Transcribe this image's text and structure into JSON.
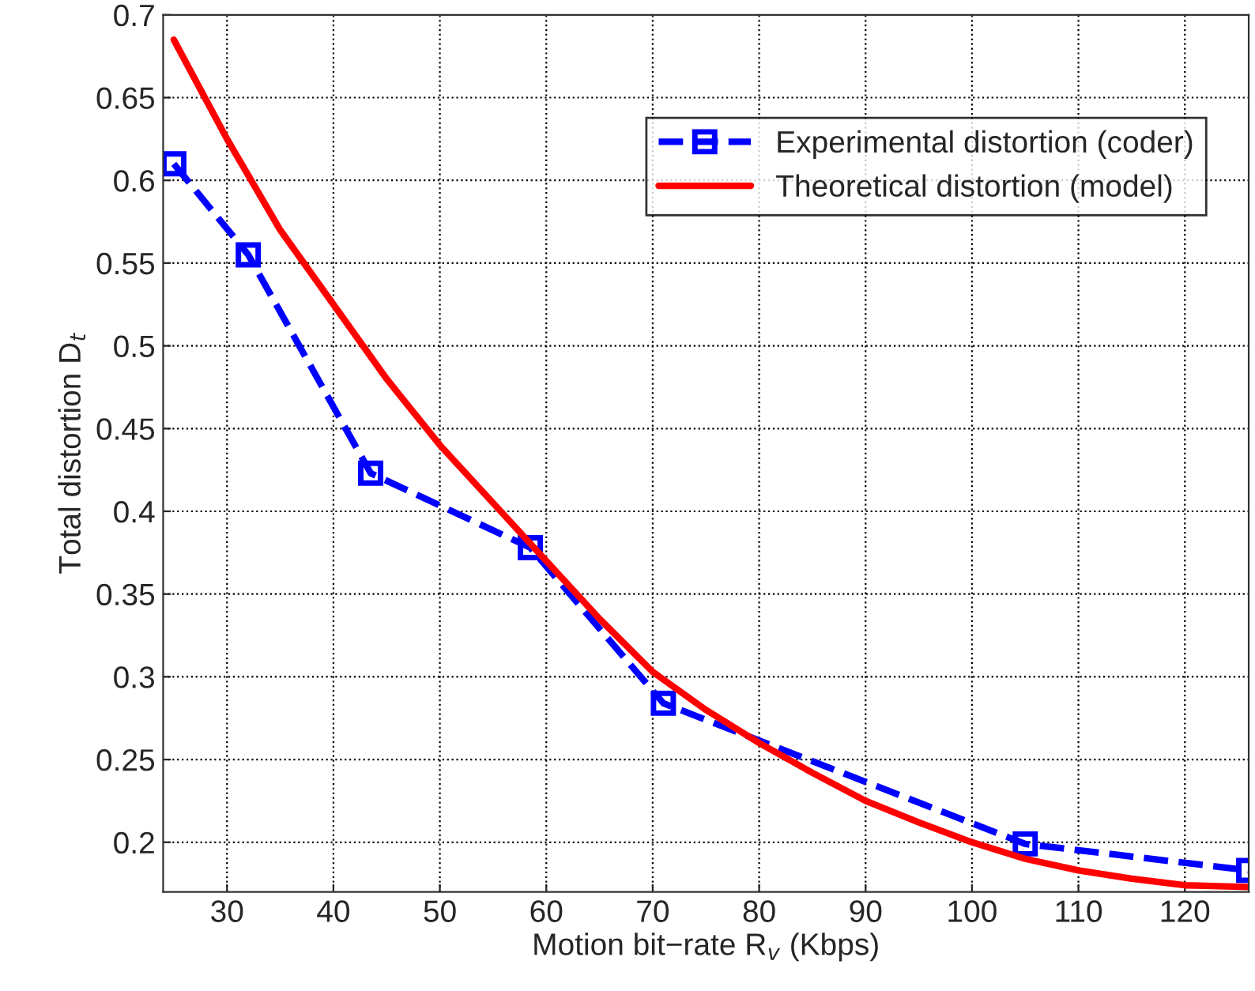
{
  "chart_data": {
    "type": "line",
    "xlabel": "Motion bit−rate R$_{v}$ (Kbps)",
    "ylabel": "Total distortion D$_{t}$",
    "xlim": [
      24,
      126
    ],
    "ylim": [
      0.17,
      0.7
    ],
    "xticks": [
      30,
      40,
      50,
      60,
      70,
      80,
      90,
      100,
      110,
      120
    ],
    "yticks": [
      0.2,
      0.25,
      0.3,
      0.35,
      0.4,
      0.45,
      0.5,
      0.55,
      0.6,
      0.65,
      0.7
    ],
    "grid": true,
    "legend": "top right",
    "series": [
      {
        "name": "Experimental distortion (coder)",
        "color": "#0000ff",
        "marker": "square",
        "line_style": "dashed",
        "x": [
          25,
          32,
          43.5,
          58.5,
          71,
          105,
          126
        ],
        "values": [
          0.61,
          0.555,
          0.423,
          0.378,
          0.284,
          0.199,
          0.183
        ]
      },
      {
        "name": "Theoretical distortion (model)",
        "color": "#ff0000",
        "marker": "none",
        "line_style": "solid",
        "x": [
          25,
          30,
          35,
          40,
          45,
          50,
          55,
          60,
          65,
          70,
          75,
          80,
          85,
          90,
          95,
          100,
          105,
          110,
          115,
          120,
          126
        ],
        "values": [
          0.685,
          0.625,
          0.57,
          0.525,
          0.48,
          0.44,
          0.405,
          0.37,
          0.335,
          0.303,
          0.28,
          0.26,
          0.242,
          0.225,
          0.212,
          0.2,
          0.19,
          0.183,
          0.178,
          0.174,
          0.173
        ]
      }
    ]
  }
}
